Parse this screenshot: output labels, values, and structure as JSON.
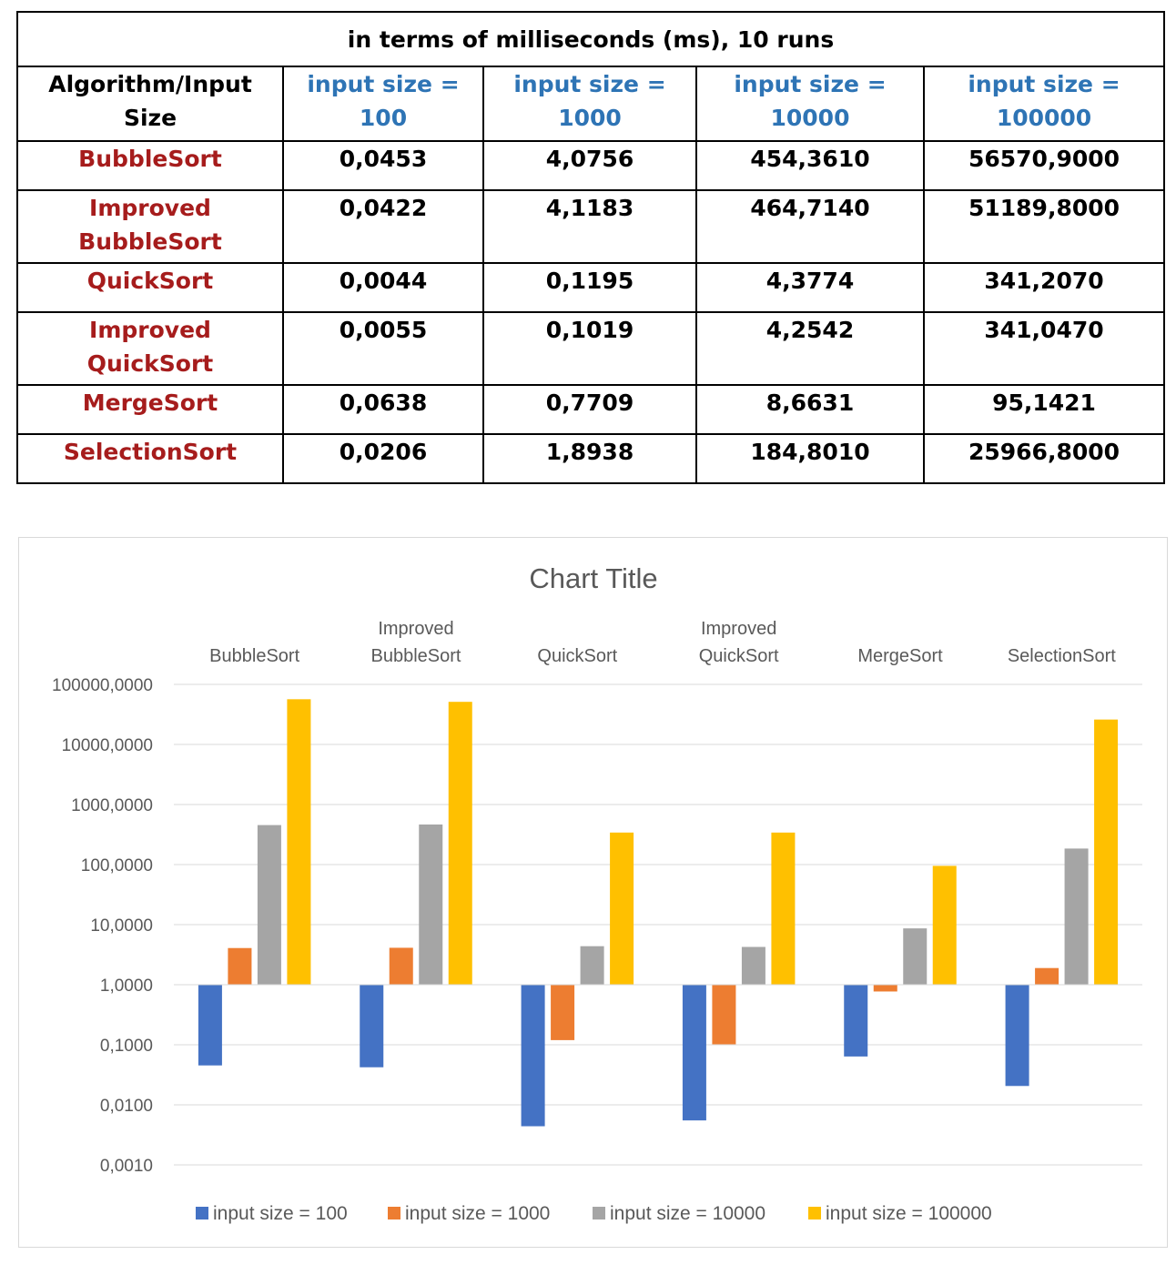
{
  "table": {
    "caption": "in terms of milliseconds (ms), 10 runs",
    "header_first": [
      "Algorithm/Input",
      "Size"
    ],
    "columns": [
      [
        "input size =",
        "100"
      ],
      [
        "input size =",
        "1000"
      ],
      [
        "input size =",
        "10000"
      ],
      [
        "input size =",
        "100000"
      ]
    ],
    "rows": [
      {
        "name": [
          "BubbleSort"
        ],
        "values": [
          "0,0453",
          "4,0756",
          "454,3610",
          "56570,9000"
        ]
      },
      {
        "name": [
          "Improved",
          "BubbleSort"
        ],
        "values": [
          "0,0422",
          "4,1183",
          "464,7140",
          "51189,8000"
        ]
      },
      {
        "name": [
          "QuickSort"
        ],
        "values": [
          "0,0044",
          "0,1195",
          "4,3774",
          "341,2070"
        ]
      },
      {
        "name": [
          "Improved",
          "QuickSort"
        ],
        "values": [
          "0,0055",
          "0,1019",
          "4,2542",
          "341,0470"
        ]
      },
      {
        "name": [
          "MergeSort"
        ],
        "values": [
          "0,0638",
          "0,7709",
          "8,6631",
          "95,1421"
        ]
      },
      {
        "name": [
          "SelectionSort"
        ],
        "values": [
          "0,0206",
          "1,8938",
          "184,8010",
          "25966,8000"
        ]
      }
    ],
    "colors": {
      "algorithm": "#a61c1c",
      "column_header": "#2e74b5"
    }
  },
  "chart_data": {
    "type": "bar",
    "title": "Chart Title",
    "xlabel": "",
    "ylabel": "",
    "y_scale": "log",
    "ylim": [
      0.001,
      100000
    ],
    "y_ticks": [
      100000,
      10000,
      1000,
      100,
      10,
      1,
      0.1,
      0.01,
      0.001
    ],
    "y_tick_labels": [
      "100000,0000",
      "10000,0000",
      "1000,0000",
      "100,0000",
      "10,0000",
      "1,0000",
      "0,1000",
      "0,0100",
      "0,0010"
    ],
    "bar_baseline": 1,
    "category_axis_position": "top",
    "categories": [
      [
        "BubbleSort"
      ],
      [
        "Improved",
        "BubbleSort"
      ],
      [
        "QuickSort"
      ],
      [
        "Improved",
        "QuickSort"
      ],
      [
        "MergeSort"
      ],
      [
        "SelectionSort"
      ]
    ],
    "series": [
      {
        "name": "input size = 100",
        "color": "#4472c4",
        "values": [
          0.0453,
          0.0422,
          0.0044,
          0.0055,
          0.0638,
          0.0206
        ]
      },
      {
        "name": "input size = 1000",
        "color": "#ed7d31",
        "values": [
          4.0756,
          4.1183,
          0.1195,
          0.1019,
          0.7709,
          1.8938
        ]
      },
      {
        "name": "input size = 10000",
        "color": "#a5a5a5",
        "values": [
          454.361,
          464.714,
          4.3774,
          4.2542,
          8.6631,
          184.801
        ]
      },
      {
        "name": "input size = 100000",
        "color": "#ffc000",
        "values": [
          56570.9,
          51189.8,
          341.207,
          341.047,
          95.1421,
          25966.8
        ]
      }
    ],
    "grid": true,
    "legend_position": "bottom"
  }
}
